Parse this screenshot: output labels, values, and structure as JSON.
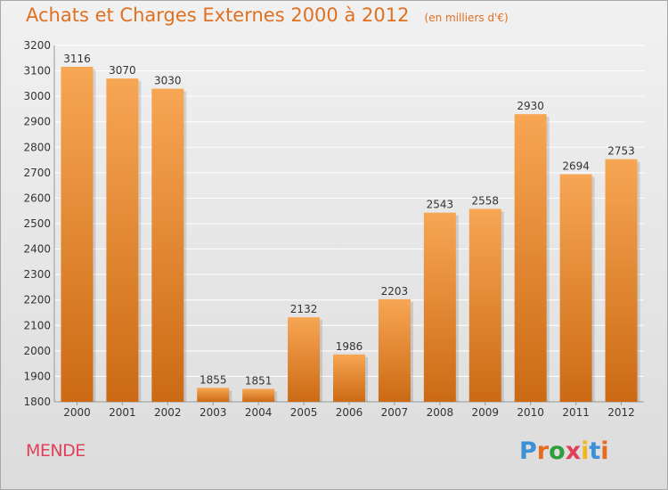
{
  "title": "Achats et Charges Externes 2000 à 2012",
  "unit_label": "(en milliers d'€)",
  "commune": "MENDE",
  "brand": "Proxiti",
  "brand_colors": [
    "#3d8fd6",
    "#e86a1d",
    "#2e9e3f",
    "#e0405a",
    "#f2b71b",
    "#3d8fd6",
    "#e86a1d"
  ],
  "colors": {
    "bar_top": "#f7a654",
    "bar_bottom": "#cc6a14",
    "title": "#e07020",
    "commune": "#e0405a",
    "grid": "#ffffff",
    "axis_text": "#333333"
  },
  "chart_data": {
    "type": "bar",
    "title": "Achats et Charges Externes 2000 à 2012",
    "subtitle": "(en milliers d'€)",
    "categories": [
      "2000",
      "2001",
      "2002",
      "2003",
      "2004",
      "2005",
      "2006",
      "2007",
      "2008",
      "2009",
      "2010",
      "2011",
      "2012"
    ],
    "values": [
      3116,
      3070,
      3030,
      1855,
      1851,
      2132,
      1986,
      2203,
      2543,
      2558,
      2930,
      2694,
      2753
    ],
    "ylim": [
      1800,
      3200
    ],
    "yticks": [
      1800,
      1900,
      2000,
      2100,
      2200,
      2300,
      2400,
      2500,
      2600,
      2700,
      2800,
      2900,
      3000,
      3100,
      3200
    ],
    "grid": true,
    "data_labels": true
  }
}
